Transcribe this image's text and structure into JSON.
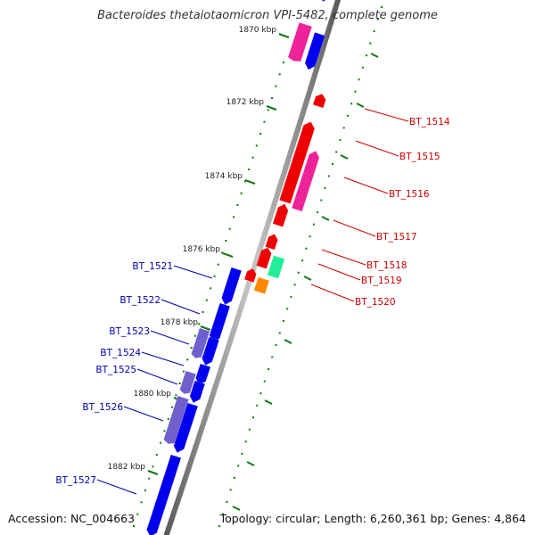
{
  "title": "Bacteroides thetaiotaomicron VPI-5482, complete genome",
  "accession": "Accession: NC_004663",
  "topology": "Topology: circular; Length: 6,260,361 bp; Genes: 4,864",
  "colors": {
    "forward": "#0000ee",
    "reverse": "#ee0000",
    "magenta": "#ee2299",
    "purple": "#7060cc",
    "green": "#22ee99",
    "orange": "#ff8800",
    "tick": "#117711",
    "backbone": "#8a8a8a",
    "label_reverse": "#cc0000",
    "label_forward": "#0000aa"
  },
  "scale_ticks": [
    {
      "kbp": 1870,
      "label": "1870 kbp"
    },
    {
      "kbp": 1872,
      "label": "1872 kbp"
    },
    {
      "kbp": 1874,
      "label": "1874 kbp"
    },
    {
      "kbp": 1876,
      "label": "1876 kbp"
    },
    {
      "kbp": 1878,
      "label": "1878 kbp"
    },
    {
      "kbp": 1880,
      "label": "1880 kbp"
    },
    {
      "kbp": 1882,
      "label": "1882 kbp"
    }
  ],
  "labeled_genes": [
    {
      "name": "BT_1514",
      "strand": "reverse"
    },
    {
      "name": "BT_1515",
      "strand": "reverse"
    },
    {
      "name": "BT_1516",
      "strand": "reverse"
    },
    {
      "name": "BT_1517",
      "strand": "reverse"
    },
    {
      "name": "BT_1518",
      "strand": "reverse"
    },
    {
      "name": "BT_1519",
      "strand": "reverse"
    },
    {
      "name": "BT_1520",
      "strand": "reverse"
    },
    {
      "name": "BT_1521",
      "strand": "forward"
    },
    {
      "name": "BT_1522",
      "strand": "forward"
    },
    {
      "name": "BT_1523",
      "strand": "forward"
    },
    {
      "name": "BT_1524",
      "strand": "forward"
    },
    {
      "name": "BT_1525",
      "strand": "forward"
    },
    {
      "name": "BT_1526",
      "strand": "forward"
    },
    {
      "name": "BT_1527",
      "strand": "forward"
    }
  ]
}
